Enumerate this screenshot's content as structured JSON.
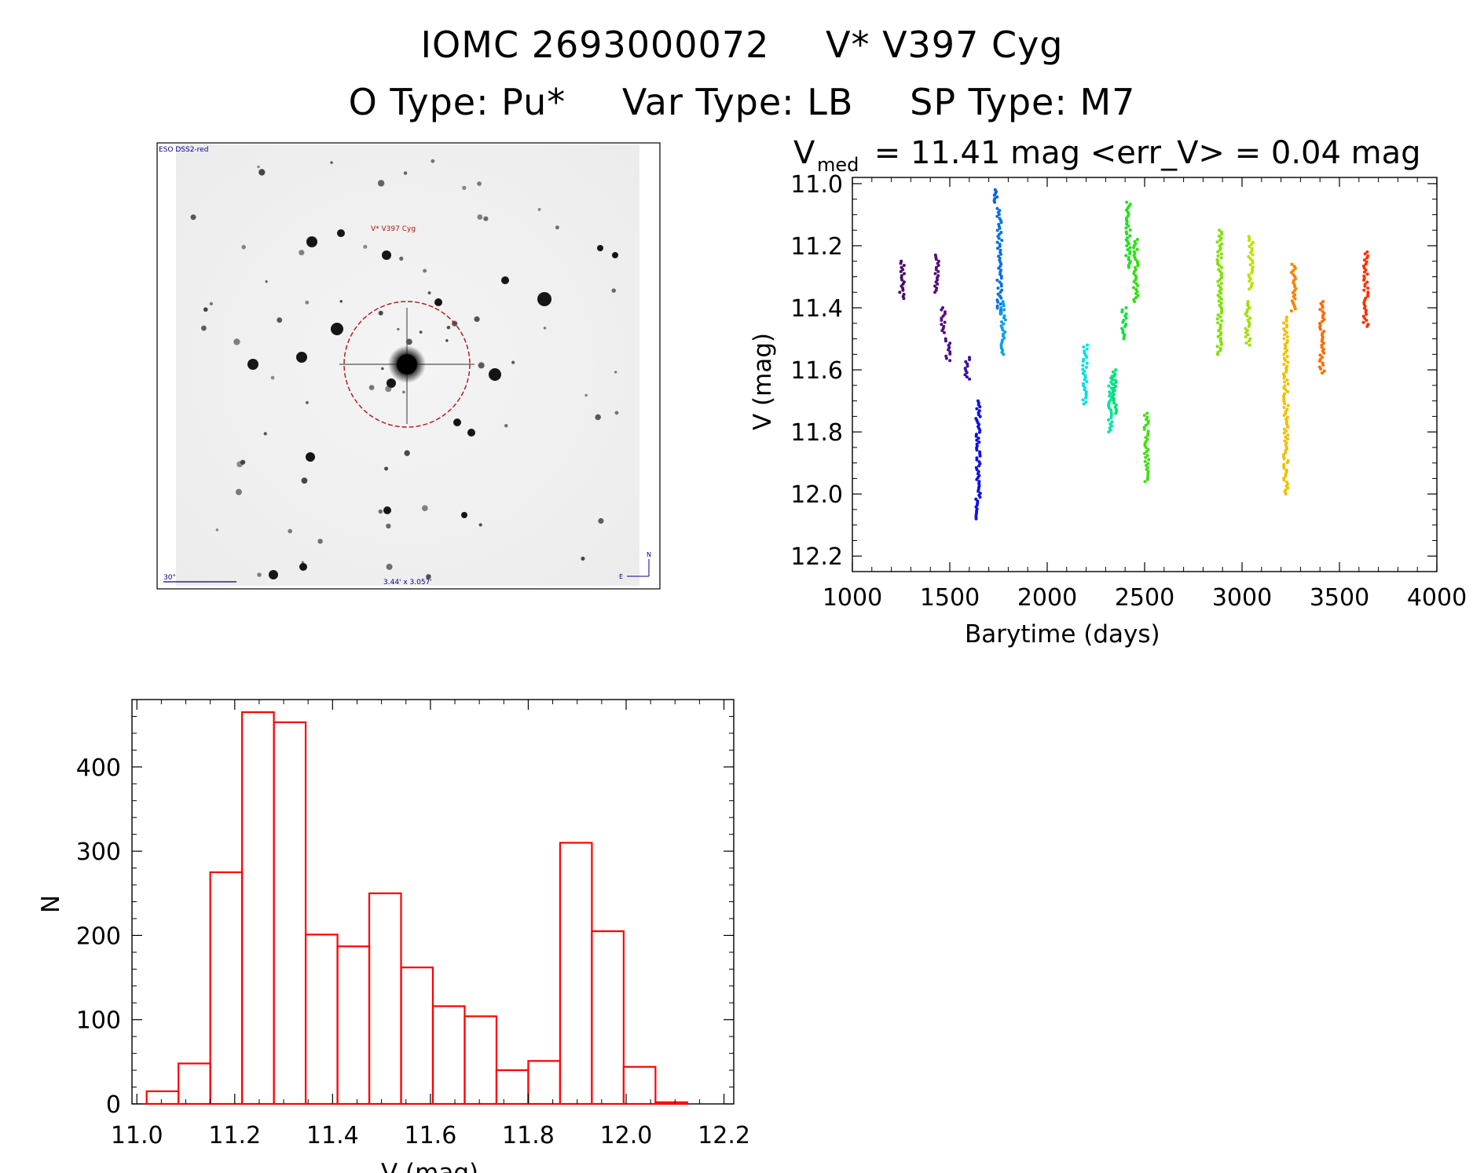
{
  "header": {
    "object_id": "IOMC 2693000072",
    "object_name": "V* V397 Cyg",
    "o_type": "O Type: Pu*",
    "var_type": "Var Type: LB",
    "sp_type": "SP Type: M7"
  },
  "image_panel": {
    "survey_label": "ESO DSS2-red",
    "target_label": "V* V397 Cyg",
    "scale_label": "30\"",
    "size_label": "3.44' x 3.057'",
    "compass_n": "N",
    "compass_e": "E"
  },
  "chart_data": [
    {
      "type": "scatter",
      "title_main": "V",
      "title_sub": "med",
      "title_rest": " = 11.41 mag <err_V> = 0.04 mag",
      "xlabel": "Barytime (days)",
      "ylabel": "V (mag)",
      "xlim": [
        1000,
        4000
      ],
      "ylim": [
        12.25,
        10.98
      ],
      "y_inverted": true,
      "xticks": [
        1000,
        1500,
        2000,
        2500,
        3000,
        3500,
        4000
      ],
      "yticks": [
        11.0,
        11.2,
        11.4,
        11.6,
        11.8,
        12.0,
        12.2
      ],
      "ytick_labels": [
        "11.0",
        "11.2",
        "11.4",
        "11.6",
        "11.8",
        "12.0",
        "12.2"
      ],
      "grid": false,
      "groups": [
        {
          "x": 1255,
          "ymin": 11.25,
          "ymax": 11.37,
          "color": "#4b0a6e"
        },
        {
          "x": 1435,
          "ymin": 11.23,
          "ymax": 11.35,
          "color": "#5a0d80"
        },
        {
          "x": 1465,
          "ymin": 11.4,
          "ymax": 11.48,
          "color": "#5a0d80"
        },
        {
          "x": 1490,
          "ymin": 11.5,
          "ymax": 11.57,
          "color": "#4a1090"
        },
        {
          "x": 1590,
          "ymin": 11.56,
          "ymax": 11.63,
          "color": "#3a10a0"
        },
        {
          "x": 1645,
          "ymin": 11.7,
          "ymax": 12.08,
          "color": "#1010e6"
        },
        {
          "x": 1740,
          "ymin": 11.02,
          "ymax": 11.06,
          "color": "#0a60e6"
        },
        {
          "x": 1755,
          "ymin": 11.08,
          "ymax": 11.42,
          "color": "#0a70e6"
        },
        {
          "x": 1775,
          "ymin": 11.38,
          "ymax": 11.55,
          "color": "#0aa0e6"
        },
        {
          "x": 2195,
          "ymin": 11.52,
          "ymax": 11.71,
          "color": "#00e0e0"
        },
        {
          "x": 2325,
          "ymin": 11.62,
          "ymax": 11.8,
          "color": "#00e6a0"
        },
        {
          "x": 2345,
          "ymin": 11.6,
          "ymax": 11.74,
          "color": "#00e070"
        },
        {
          "x": 2395,
          "ymin": 11.4,
          "ymax": 11.5,
          "color": "#10e040"
        },
        {
          "x": 2415,
          "ymin": 11.06,
          "ymax": 11.27,
          "color": "#20e020"
        },
        {
          "x": 2455,
          "ymin": 11.18,
          "ymax": 11.38,
          "color": "#30e010"
        },
        {
          "x": 2510,
          "ymin": 11.74,
          "ymax": 11.96,
          "color": "#40e010"
        },
        {
          "x": 2885,
          "ymin": 11.15,
          "ymax": 11.55,
          "color": "#80e000"
        },
        {
          "x": 3030,
          "ymin": 11.38,
          "ymax": 11.52,
          "color": "#a0e000"
        },
        {
          "x": 3045,
          "ymin": 11.17,
          "ymax": 11.34,
          "color": "#c0e000"
        },
        {
          "x": 3225,
          "ymin": 11.43,
          "ymax": 12.0,
          "color": "#f0c000"
        },
        {
          "x": 3265,
          "ymin": 11.26,
          "ymax": 11.41,
          "color": "#ff8000"
        },
        {
          "x": 3410,
          "ymin": 11.38,
          "ymax": 11.61,
          "color": "#ff6a00"
        },
        {
          "x": 3635,
          "ymin": 11.22,
          "ymax": 11.46,
          "color": "#ff3000"
        }
      ]
    },
    {
      "type": "bar",
      "title": "",
      "xlabel": "V (mag)",
      "ylabel": "N",
      "xlim": [
        10.99,
        12.22
      ],
      "ylim": [
        0,
        480
      ],
      "xticks": [
        11.0,
        11.2,
        11.4,
        11.6,
        11.8,
        12.0,
        12.2
      ],
      "xtick_labels": [
        "11.0",
        "11.2",
        "11.4",
        "11.6",
        "11.8",
        "12.0",
        "12.2"
      ],
      "yticks": [
        0,
        100,
        200,
        300,
        400
      ],
      "ytick_labels": [
        "0",
        "100",
        "200",
        "300",
        "400"
      ],
      "bin_width": 0.065,
      "bin_left": [
        11.02,
        11.085,
        11.15,
        11.215,
        11.28,
        11.345,
        11.41,
        11.475,
        11.54,
        11.605,
        11.67,
        11.735,
        11.8,
        11.865,
        11.93,
        11.995,
        12.06
      ],
      "values": [
        15,
        48,
        275,
        465,
        453,
        201,
        187,
        250,
        162,
        116,
        104,
        40,
        51,
        310,
        205,
        44,
        2
      ],
      "bar_color": "#ff0000"
    }
  ]
}
